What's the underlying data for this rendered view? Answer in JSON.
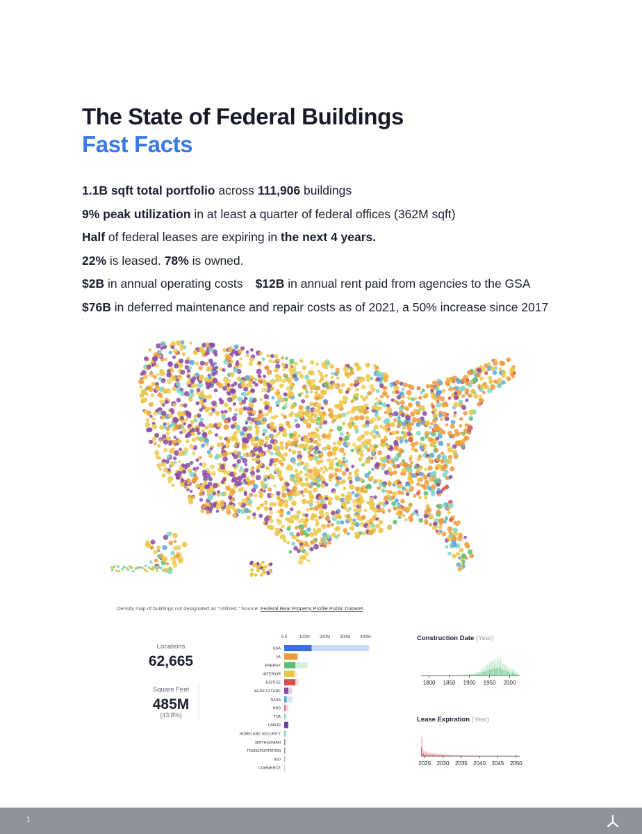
{
  "title": "The State of Federal Buildings",
  "subtitle": "Fast Facts",
  "facts": {
    "f1": {
      "a": "1.1B sqft total portfolio",
      "b": " across ",
      "c": "111,906",
      "d": " buildings"
    },
    "f2": {
      "a": "9% peak utilization",
      "b": " in at least a quarter of federal offices (362M sqft)"
    },
    "f3": {
      "a": "Half",
      "b": " of federal leases are expiring in ",
      "c": "the next 4 years."
    },
    "f4": {
      "a": "22%",
      "b": " is leased. ",
      "c": "78%",
      "d": " is owned."
    },
    "f5": {
      "a": "$2B",
      "b": " in annual operating costs",
      "c": "$12B",
      "d": " in annual rent paid from agencies to the GSA"
    },
    "f6": {
      "a": "$76B",
      "b": " in deferred maintenance and repair costs as of 2021, a 50% increase since 2017"
    }
  },
  "map": {
    "caption_text": "Density map of buildings not designated as \"Utilized.\" Source: ",
    "caption_link": "Federal Real Property Profile Public Dataset",
    "colors": [
      "#ecc443",
      "#f0d062",
      "#ee9a3c",
      "#8a4aa2",
      "#7ed6c8",
      "#5aa6d8",
      "#5dbf73",
      "#d8504e",
      "#f5de8a"
    ]
  },
  "stats": {
    "locations_label": "Locations",
    "locations_value": "62,665",
    "sqft_label": "Square Feet",
    "sqft_value": "485M",
    "sqft_pct": "(43.8%)"
  },
  "chart_data": [
    {
      "type": "bar",
      "orientation": "horizontal",
      "categories": [
        "GSA",
        "VA",
        "ENERGY",
        "INTERIOR",
        "JUSTICE",
        "AGRICULTURE",
        "NASA",
        "HHS",
        "TVA",
        "LABOR",
        "HOMELAND SECURITY",
        "SMITHSONIAN",
        "TRANSPORTATION",
        "IGO",
        "COMMERCE"
      ],
      "x_ticks": [
        "0.0",
        "100M",
        "200M",
        "300M",
        "400M"
      ],
      "xlim": [
        0,
        400000000
      ],
      "series": [
        {
          "values": [
            418000000,
            70000000,
            115000000,
            65000000,
            70000000,
            40000000,
            40000000,
            20000000,
            12000000,
            10000000,
            6000000,
            5000000,
            3000000,
            2000000,
            2000000
          ]
        },
        {
          "values": [
            135000000,
            65000000,
            55000000,
            50000000,
            55000000,
            20000000,
            12000000,
            8000000,
            5000000,
            20000000,
            8000000,
            4000000,
            3000000,
            1000000,
            1000000
          ]
        }
      ],
      "colors": [
        "#3b6fe0",
        "#ee9a3c",
        "#5dbf73",
        "#ecc443",
        "#d8504e",
        "#8a4aa2",
        "#5aa6d8",
        "#e66ca0",
        "#7ed6c8",
        "#6a3d9a",
        "#7ed6c8",
        "#888888",
        "#999999",
        "#bbbbbb",
        "#cccccc"
      ]
    },
    {
      "type": "bar",
      "title": "Construction Date",
      "title_suffix": "(Year)",
      "x_ticks": [
        "1800",
        "1850",
        "1900",
        "1950",
        "2000"
      ],
      "xlim": [
        1780,
        2025
      ],
      "bar_color": "#5dbf73",
      "start": 1880,
      "step": 3,
      "values": [
        0.05,
        0.06,
        0.05,
        0.07,
        0.06,
        0.08,
        0.07,
        0.1,
        0.09,
        0.12,
        0.1,
        0.14,
        0.15,
        0.18,
        0.2,
        0.22,
        0.3,
        0.34,
        0.45,
        0.4,
        0.5,
        0.62,
        0.55,
        0.7,
        0.65,
        0.8,
        0.75,
        0.9,
        0.7,
        0.85,
        0.95,
        0.8,
        1.0,
        0.75,
        0.6,
        0.65,
        0.55,
        0.5,
        0.45,
        0.4,
        0.35,
        0.3,
        0.35,
        0.3,
        0.25,
        0.2,
        0.15
      ]
    },
    {
      "type": "bar",
      "title": "Lease Expiration",
      "title_suffix": "(Year)",
      "x_ticks": [
        "2025",
        "2030",
        "2035",
        "2040",
        "2045",
        "2050"
      ],
      "xlim": [
        2024,
        2051
      ],
      "bar_color": "#d8504e",
      "start": 2024,
      "step": 0.5,
      "values": [
        1.0,
        0.3,
        0.25,
        0.22,
        0.2,
        0.18,
        0.16,
        0.15,
        0.14,
        0.12,
        0.12,
        0.1,
        0.1,
        0.09,
        0.08,
        0.08,
        0.07,
        0.07,
        0.06,
        0.06,
        0.05,
        0.05,
        0.05,
        0.04,
        0.04,
        0.04,
        0.03,
        0.03,
        0.03,
        0.03,
        0.02,
        0.02,
        0.02,
        0.02,
        0.02,
        0.02,
        0.02,
        0.01,
        0.01,
        0.01,
        0.01,
        0.01,
        0.01,
        0.01,
        0.01,
        0.01,
        0.01,
        0.01,
        0.01,
        0.01,
        0.01,
        0.01
      ]
    }
  ],
  "footer": {
    "page_number": "1"
  }
}
